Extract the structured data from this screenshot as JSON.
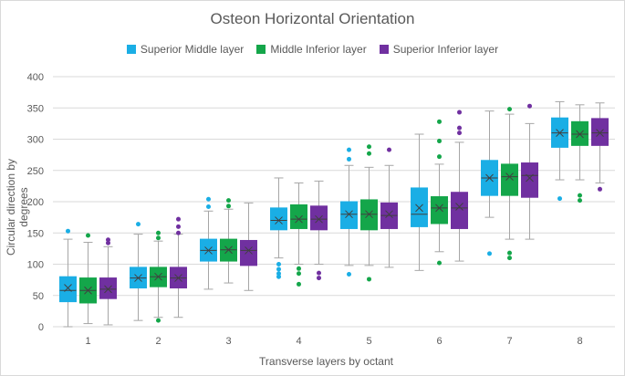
{
  "chart_data": {
    "type": "boxplot",
    "title": "Osteon Horizontal Orientation",
    "xlabel": "Transverse layers by octant",
    "ylabel": "Circular direction by degrees",
    "ylim": [
      0,
      400
    ],
    "yticks": [
      0,
      50,
      100,
      150,
      200,
      250,
      300,
      350,
      400
    ],
    "categories": [
      "1",
      "2",
      "3",
      "4",
      "5",
      "6",
      "7",
      "8"
    ],
    "legend_position": "top",
    "gridlines": true,
    "series": [
      {
        "name": "Superior Middle layer",
        "color": "#1aaee5",
        "boxes": [
          {
            "min": 0,
            "q1": 40,
            "median": 58,
            "mean": 62,
            "q3": 80,
            "max": 140,
            "outliers": [
              153
            ]
          },
          {
            "min": 10,
            "q1": 62,
            "median": 78,
            "mean": 78,
            "q3": 95,
            "max": 148,
            "outliers": [
              164
            ]
          },
          {
            "min": 60,
            "q1": 105,
            "median": 122,
            "mean": 122,
            "q3": 140,
            "max": 185,
            "outliers": [
              192,
              204
            ]
          },
          {
            "min": 110,
            "q1": 155,
            "median": 170,
            "mean": 170,
            "q3": 190,
            "max": 238,
            "outliers": [
              80,
              85,
              92,
              100
            ]
          },
          {
            "min": 98,
            "q1": 157,
            "median": 180,
            "mean": 180,
            "q3": 200,
            "max": 258,
            "outliers": [
              84,
              268,
              283
            ]
          },
          {
            "min": 90,
            "q1": 160,
            "median": 180,
            "mean": 190,
            "q3": 222,
            "max": 308,
            "outliers": []
          },
          {
            "min": 175,
            "q1": 210,
            "median": 238,
            "mean": 238,
            "q3": 266,
            "max": 345,
            "outliers": [
              117
            ]
          },
          {
            "min": 235,
            "q1": 287,
            "median": 310,
            "mean": 310,
            "q3": 334,
            "max": 360,
            "outliers": [
              205
            ]
          }
        ]
      },
      {
        "name": "Middle Inferior layer",
        "color": "#14a64a",
        "boxes": [
          {
            "min": 5,
            "q1": 38,
            "median": 58,
            "mean": 58,
            "q3": 78,
            "max": 135,
            "outliers": [
              146
            ]
          },
          {
            "min": 15,
            "q1": 64,
            "median": 80,
            "mean": 80,
            "q3": 95,
            "max": 137,
            "outliers": [
              10,
              142,
              150
            ]
          },
          {
            "min": 70,
            "q1": 105,
            "median": 123,
            "mean": 123,
            "q3": 140,
            "max": 188,
            "outliers": [
              193,
              202
            ]
          },
          {
            "min": 100,
            "q1": 157,
            "median": 172,
            "mean": 172,
            "q3": 195,
            "max": 230,
            "outliers": [
              68,
              85,
              93
            ]
          },
          {
            "min": 98,
            "q1": 155,
            "median": 180,
            "mean": 180,
            "q3": 203,
            "max": 255,
            "outliers": [
              76,
              277,
              288
            ]
          },
          {
            "min": 120,
            "q1": 165,
            "median": 190,
            "mean": 190,
            "q3": 208,
            "max": 260,
            "outliers": [
              102,
              272,
              297,
              328
            ]
          },
          {
            "min": 140,
            "q1": 210,
            "median": 240,
            "mean": 240,
            "q3": 260,
            "max": 340,
            "outliers": [
              110,
              118,
              348
            ]
          },
          {
            "min": 235,
            "q1": 290,
            "median": 308,
            "mean": 308,
            "q3": 328,
            "max": 355,
            "outliers": [
              202,
              210
            ]
          }
        ]
      },
      {
        "name": "Superior Inferior layer",
        "color": "#7030a0",
        "boxes": [
          {
            "min": 3,
            "q1": 45,
            "median": 60,
            "mean": 60,
            "q3": 78,
            "max": 128,
            "outliers": [
              134,
              139
            ]
          },
          {
            "min": 15,
            "q1": 62,
            "median": 78,
            "mean": 78,
            "q3": 95,
            "max": 148,
            "outliers": [
              150,
              160,
              172
            ]
          },
          {
            "min": 58,
            "q1": 98,
            "median": 122,
            "mean": 122,
            "q3": 138,
            "max": 198,
            "outliers": []
          },
          {
            "min": 100,
            "q1": 155,
            "median": 172,
            "mean": 172,
            "q3": 193,
            "max": 233,
            "outliers": [
              78,
              86
            ]
          },
          {
            "min": 95,
            "q1": 157,
            "median": 178,
            "mean": 180,
            "q3": 198,
            "max": 258,
            "outliers": [
              283
            ]
          },
          {
            "min": 105,
            "q1": 157,
            "median": 190,
            "mean": 192,
            "q3": 215,
            "max": 295,
            "outliers": [
              310,
              318,
              343
            ]
          },
          {
            "min": 140,
            "q1": 207,
            "median": 242,
            "mean": 238,
            "q3": 262,
            "max": 325,
            "outliers": [
              353
            ]
          },
          {
            "min": 230,
            "q1": 290,
            "median": 310,
            "mean": 310,
            "q3": 333,
            "max": 358,
            "outliers": [
              220
            ]
          }
        ]
      }
    ]
  }
}
